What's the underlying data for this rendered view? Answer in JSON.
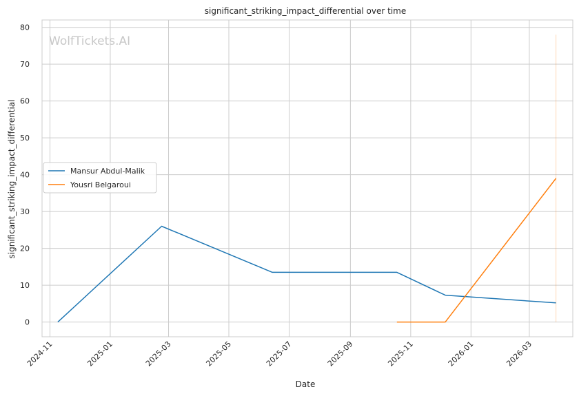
{
  "chart_data": {
    "type": "line",
    "title": "significant_striking_impact_differential over time",
    "xlabel": "Date",
    "ylabel": "significant_striking_impact_differential",
    "watermark": "WolfTickets.AI",
    "x_ticks": [
      "2024-11",
      "2025-01",
      "2025-03",
      "2025-05",
      "2025-07",
      "2025-09",
      "2025-11",
      "2026-01",
      "2026-03"
    ],
    "y_ticks": [
      0,
      10,
      20,
      30,
      40,
      50,
      60,
      70,
      80
    ],
    "xlim": [
      "2024-10-24",
      "2026-04-14"
    ],
    "ylim": [
      -4,
      82
    ],
    "grid": true,
    "legend_position": "center-left",
    "series": [
      {
        "name": "Mansur Abdul-Malik",
        "color": "#1f77b4",
        "points": [
          {
            "x": "2024-11-09",
            "y": 0
          },
          {
            "x": "2025-02-22",
            "y": 26
          },
          {
            "x": "2025-06-14",
            "y": 13.5
          },
          {
            "x": "2025-10-18",
            "y": 13.5
          },
          {
            "x": "2025-12-06",
            "y": 7.3
          },
          {
            "x": "2026-03-28",
            "y": 5.2
          }
        ]
      },
      {
        "name": "Yousri Belgaroui",
        "color": "#ff7f0e",
        "points": [
          {
            "x": "2025-10-18",
            "y": 0
          },
          {
            "x": "2025-12-06",
            "y": 0
          },
          {
            "x": "2026-03-28",
            "y": 39
          }
        ]
      }
    ],
    "annotation_line": {
      "x": "2026-03-28",
      "y_from": 0,
      "y_to": 78,
      "color": "#ff7f0e"
    }
  }
}
